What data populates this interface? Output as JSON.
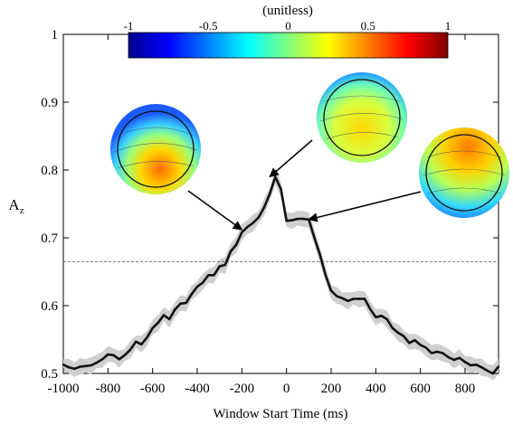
{
  "chart_data": {
    "type": "line",
    "xlabel": "Window Start Time (ms)",
    "ylabel": "Az",
    "ylabel_main": "A",
    "ylabel_sub": "z",
    "xlim": [
      -1000,
      950
    ],
    "ylim": [
      0.5,
      1.0
    ],
    "x_ticks": [
      -1000,
      -800,
      -600,
      -400,
      -200,
      0,
      200,
      400,
      600,
      800
    ],
    "x_tick_labels": [
      "-1000",
      "-800",
      "-600",
      "-400",
      "-200",
      "0",
      "200",
      "400",
      "600",
      "800"
    ],
    "y_ticks": [
      0.5,
      0.6,
      0.7,
      0.8,
      0.9,
      1.0
    ],
    "y_tick_labels": [
      "0.5",
      "0.6",
      "0.7",
      "0.8",
      "0.9",
      "1"
    ],
    "threshold": 0.665,
    "series": [
      {
        "x": [
          -1000,
          -975,
          -950,
          -925,
          -900,
          -875,
          -850,
          -825,
          -800,
          -775,
          -750,
          -725,
          -700,
          -675,
          -650,
          -625,
          -600,
          -575,
          -550,
          -525,
          -500,
          -475,
          -450,
          -425,
          -400,
          -375,
          -350,
          -325,
          -300,
          -275,
          -250,
          -225,
          -200,
          -175,
          -150,
          -125,
          -100,
          -75,
          -50,
          -25,
          0,
          25,
          50,
          75,
          100,
          125,
          150,
          175,
          200,
          225,
          250,
          275,
          300,
          325,
          350,
          375,
          400,
          425,
          450,
          475,
          500,
          525,
          550,
          575,
          600,
          625,
          650,
          675,
          700,
          725,
          750,
          775,
          800,
          825,
          850,
          875,
          900,
          925,
          950
        ],
        "y": [
          0.513,
          0.509,
          0.507,
          0.51,
          0.511,
          0.512,
          0.516,
          0.521,
          0.528,
          0.527,
          0.521,
          0.527,
          0.535,
          0.547,
          0.543,
          0.553,
          0.567,
          0.575,
          0.586,
          0.58,
          0.594,
          0.603,
          0.604,
          0.617,
          0.628,
          0.634,
          0.645,
          0.645,
          0.658,
          0.66,
          0.68,
          0.69,
          0.708,
          0.716,
          0.722,
          0.73,
          0.745,
          0.765,
          0.79,
          0.772,
          0.725,
          0.726,
          0.728,
          0.728,
          0.727,
          0.7,
          0.675,
          0.645,
          0.622,
          0.614,
          0.611,
          0.607,
          0.61,
          0.61,
          0.61,
          0.595,
          0.583,
          0.585,
          0.58,
          0.567,
          0.56,
          0.555,
          0.545,
          0.549,
          0.542,
          0.538,
          0.53,
          0.532,
          0.53,
          0.524,
          0.52,
          0.523,
          0.517,
          0.512,
          0.513,
          0.509,
          0.504,
          0.5,
          0.51
        ],
        "ci": 0.013
      }
    ],
    "colorbar": {
      "title": "(unitless)",
      "ticks": [
        -1,
        -0.5,
        0,
        0.5,
        1
      ],
      "tick_labels": [
        "-1",
        "-0.5",
        "0",
        "0.5",
        "1"
      ],
      "colormap": [
        "#00008f",
        "#0000ff",
        "#0080ff",
        "#00ffff",
        "#80ff80",
        "#ffff00",
        "#ff8000",
        "#ff0000",
        "#800000"
      ]
    },
    "annotations": [
      {
        "target_x": -200,
        "target_y": 0.712,
        "pattern": "front-cool-back-warm"
      },
      {
        "target_x": -75,
        "target_y": 0.79,
        "pattern": "front-cool-center-warm"
      },
      {
        "target_x": 100,
        "target_y": 0.727,
        "pattern": "top-warm-bottom-cool"
      }
    ],
    "colors": {
      "line": "#111111",
      "band": "#cfcfcf",
      "threshold": "#444444"
    }
  }
}
